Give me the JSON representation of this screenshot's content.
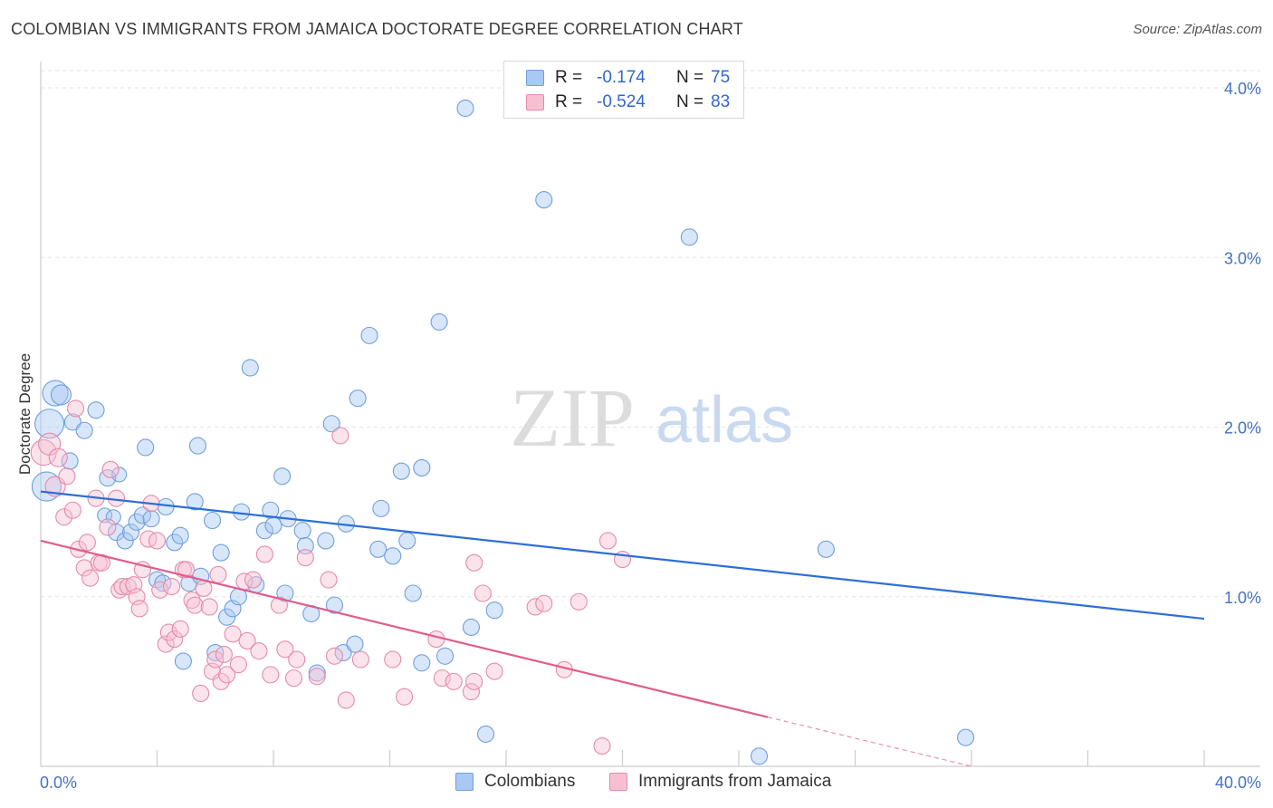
{
  "header": {
    "title": "COLOMBIAN VS IMMIGRANTS FROM JAMAICA DOCTORATE DEGREE CORRELATION CHART",
    "source": "Source: ZipAtlas.com"
  },
  "watermark": {
    "zip": "ZIP",
    "atlas": "atlas"
  },
  "legend": {
    "rows": [
      {
        "r_label": "R =",
        "r_value": "-0.174",
        "n_label": "N =",
        "n_value": "75",
        "color": "#a9c8f2",
        "stroke": "#6f9fdc"
      },
      {
        "r_label": "R =",
        "r_value": "-0.524",
        "n_label": "N =",
        "n_value": "83",
        "color": "#f7c0d2",
        "stroke": "#e58aaa"
      }
    ]
  },
  "bottom_legend": {
    "items": [
      "Colombians",
      "Immigrants from Jamaica"
    ]
  },
  "chart_data": {
    "type": "scatter",
    "title": "COLOMBIAN VS IMMIGRANTS FROM JAMAICA DOCTORATE DEGREE CORRELATION CHART",
    "xlabel": "",
    "ylabel": "Doctorate Degree",
    "xlim": [
      0,
      40
    ],
    "ylim": [
      0,
      4.0
    ],
    "x_tick_labels": [
      "0.0%",
      "40.0%"
    ],
    "y_tick_labels": [
      "1.0%",
      "2.0%",
      "3.0%",
      "4.0%"
    ],
    "y_ticks": [
      1.0,
      2.0,
      3.0,
      4.0
    ],
    "grid": "horizontal dashed",
    "legend_position": "top-center",
    "series": [
      {
        "name": "Colombians",
        "color": "#a9c8f2",
        "stroke": "#6f9fdc",
        "trend": {
          "x": [
            0,
            40
          ],
          "y": [
            1.62,
            0.87
          ],
          "color": "#2e6fd6"
        },
        "points": [
          [
            0.2,
            1.65
          ],
          [
            0.3,
            2.02
          ],
          [
            0.5,
            2.2
          ],
          [
            0.7,
            2.19
          ],
          [
            1.0,
            1.8
          ],
          [
            1.1,
            2.03
          ],
          [
            1.5,
            1.98
          ],
          [
            1.9,
            2.1
          ],
          [
            2.2,
            1.48
          ],
          [
            2.3,
            1.7
          ],
          [
            2.5,
            1.47
          ],
          [
            2.6,
            1.38
          ],
          [
            2.7,
            1.72
          ],
          [
            2.9,
            1.33
          ],
          [
            3.1,
            1.38
          ],
          [
            3.3,
            1.44
          ],
          [
            3.5,
            1.48
          ],
          [
            3.6,
            1.88
          ],
          [
            3.8,
            1.46
          ],
          [
            4.0,
            1.1
          ],
          [
            4.2,
            1.08
          ],
          [
            4.3,
            1.53
          ],
          [
            4.6,
            1.32
          ],
          [
            4.8,
            1.36
          ],
          [
            4.9,
            0.62
          ],
          [
            5.1,
            1.08
          ],
          [
            5.3,
            1.56
          ],
          [
            5.4,
            1.89
          ],
          [
            5.5,
            1.12
          ],
          [
            5.9,
            1.45
          ],
          [
            6.0,
            0.67
          ],
          [
            6.2,
            1.26
          ],
          [
            6.4,
            0.88
          ],
          [
            6.6,
            0.93
          ],
          [
            6.8,
            1.0
          ],
          [
            6.9,
            1.5
          ],
          [
            7.2,
            2.35
          ],
          [
            7.4,
            1.07
          ],
          [
            7.7,
            1.39
          ],
          [
            7.9,
            1.51
          ],
          [
            8.0,
            1.42
          ],
          [
            8.3,
            1.71
          ],
          [
            8.4,
            1.02
          ],
          [
            8.5,
            1.46
          ],
          [
            9.0,
            1.39
          ],
          [
            9.1,
            1.3
          ],
          [
            9.3,
            0.9
          ],
          [
            9.5,
            0.55
          ],
          [
            9.8,
            1.33
          ],
          [
            10.0,
            2.02
          ],
          [
            10.1,
            0.95
          ],
          [
            10.4,
            0.67
          ],
          [
            10.5,
            1.43
          ],
          [
            10.8,
            0.72
          ],
          [
            10.9,
            2.17
          ],
          [
            11.3,
            2.54
          ],
          [
            11.6,
            1.28
          ],
          [
            11.7,
            1.52
          ],
          [
            12.1,
            1.24
          ],
          [
            12.4,
            1.74
          ],
          [
            12.6,
            1.33
          ],
          [
            12.8,
            1.02
          ],
          [
            13.1,
            1.76
          ],
          [
            13.1,
            0.61
          ],
          [
            13.7,
            2.62
          ],
          [
            13.9,
            0.65
          ],
          [
            14.6,
            3.88
          ],
          [
            14.8,
            0.82
          ],
          [
            15.3,
            0.19
          ],
          [
            15.6,
            0.92
          ],
          [
            17.3,
            3.34
          ],
          [
            22.3,
            3.12
          ],
          [
            24.7,
            0.06
          ],
          [
            27.0,
            1.28
          ],
          [
            31.8,
            0.17
          ]
        ],
        "radius": [
          16,
          16,
          14,
          11,
          9,
          9,
          9,
          9,
          8,
          9,
          8,
          9,
          8,
          9,
          9,
          9,
          9,
          9,
          9,
          9,
          9,
          9,
          9,
          9,
          9,
          9,
          9,
          9,
          9,
          9,
          9,
          9,
          9,
          9,
          9,
          9,
          9,
          9,
          9,
          9,
          9,
          9,
          9,
          9,
          9,
          9,
          9,
          9,
          9,
          9,
          9,
          9,
          9,
          9,
          9,
          9,
          9,
          9,
          9,
          9,
          9,
          9,
          9,
          9,
          9,
          9,
          9,
          9,
          9,
          9,
          9,
          9,
          9,
          9,
          9
        ]
      },
      {
        "name": "Immigrants from Jamaica",
        "color": "#f7c0d2",
        "stroke": "#e58aaa",
        "trend": {
          "x": [
            0,
            25
          ],
          "y": [
            1.33,
            0.29
          ],
          "color": "#e05c8c",
          "dashed_extension": {
            "x": [
              25,
              32
            ],
            "y": [
              0.29,
              0.0
            ]
          }
        },
        "points": [
          [
            0.1,
            1.85
          ],
          [
            0.3,
            1.9
          ],
          [
            0.5,
            1.65
          ],
          [
            0.6,
            1.82
          ],
          [
            0.8,
            1.47
          ],
          [
            0.9,
            1.71
          ],
          [
            1.1,
            1.51
          ],
          [
            1.2,
            2.11
          ],
          [
            1.3,
            1.28
          ],
          [
            1.5,
            1.17
          ],
          [
            1.6,
            1.32
          ],
          [
            1.7,
            1.11
          ],
          [
            1.9,
            1.58
          ],
          [
            2.0,
            1.2
          ],
          [
            2.1,
            1.2
          ],
          [
            2.3,
            1.41
          ],
          [
            2.4,
            1.75
          ],
          [
            2.6,
            1.58
          ],
          [
            2.7,
            1.04
          ],
          [
            2.8,
            1.06
          ],
          [
            3.0,
            1.06
          ],
          [
            3.2,
            1.07
          ],
          [
            3.3,
            1.0
          ],
          [
            3.4,
            0.93
          ],
          [
            3.5,
            1.16
          ],
          [
            3.7,
            1.34
          ],
          [
            3.8,
            1.55
          ],
          [
            4.0,
            1.33
          ],
          [
            4.1,
            1.04
          ],
          [
            4.3,
            0.72
          ],
          [
            4.4,
            0.79
          ],
          [
            4.5,
            1.06
          ],
          [
            4.6,
            0.75
          ],
          [
            4.8,
            0.81
          ],
          [
            4.9,
            1.16
          ],
          [
            5.0,
            1.16
          ],
          [
            5.2,
            0.98
          ],
          [
            5.3,
            0.95
          ],
          [
            5.5,
            0.43
          ],
          [
            5.6,
            1.05
          ],
          [
            5.8,
            0.94
          ],
          [
            5.9,
            0.56
          ],
          [
            6.0,
            0.63
          ],
          [
            6.1,
            1.13
          ],
          [
            6.2,
            0.5
          ],
          [
            6.3,
            0.66
          ],
          [
            6.4,
            0.54
          ],
          [
            6.6,
            0.78
          ],
          [
            6.8,
            0.6
          ],
          [
            7.0,
            1.09
          ],
          [
            7.1,
            0.74
          ],
          [
            7.3,
            1.1
          ],
          [
            7.5,
            0.68
          ],
          [
            7.7,
            1.25
          ],
          [
            7.9,
            0.54
          ],
          [
            8.2,
            0.95
          ],
          [
            8.4,
            0.69
          ],
          [
            8.7,
            0.52
          ],
          [
            8.8,
            0.63
          ],
          [
            9.1,
            1.23
          ],
          [
            9.5,
            0.53
          ],
          [
            9.9,
            1.1
          ],
          [
            10.1,
            0.65
          ],
          [
            10.3,
            1.95
          ],
          [
            10.5,
            0.39
          ],
          [
            11.0,
            0.63
          ],
          [
            12.1,
            0.63
          ],
          [
            12.5,
            0.41
          ],
          [
            13.6,
            0.75
          ],
          [
            13.8,
            0.52
          ],
          [
            14.2,
            0.5
          ],
          [
            14.8,
            0.44
          ],
          [
            14.9,
            0.5
          ],
          [
            15.2,
            1.02
          ],
          [
            15.6,
            0.56
          ],
          [
            17.0,
            0.94
          ],
          [
            17.3,
            0.96
          ],
          [
            18.0,
            0.57
          ],
          [
            18.5,
            0.97
          ],
          [
            19.3,
            0.12
          ],
          [
            19.5,
            1.33
          ],
          [
            20.0,
            1.22
          ],
          [
            14.9,
            1.2
          ]
        ],
        "radius": [
          14,
          12,
          11,
          10,
          9,
          9,
          9,
          9,
          9,
          9,
          9,
          9,
          9,
          9,
          9,
          9,
          9,
          9,
          9,
          9,
          9,
          9,
          9,
          9,
          9,
          9,
          9,
          9,
          9,
          9,
          9,
          9,
          9,
          9,
          9,
          9,
          9,
          9,
          9,
          9,
          9,
          9,
          9,
          9,
          9,
          9,
          9,
          9,
          9,
          9,
          9,
          9,
          9,
          9,
          9,
          9,
          9,
          9,
          9,
          9,
          9,
          9,
          9,
          9,
          9,
          9,
          9,
          9,
          9,
          9,
          9,
          9,
          9,
          9,
          9,
          9,
          9,
          9,
          9,
          9,
          9,
          9,
          9
        ]
      }
    ]
  }
}
